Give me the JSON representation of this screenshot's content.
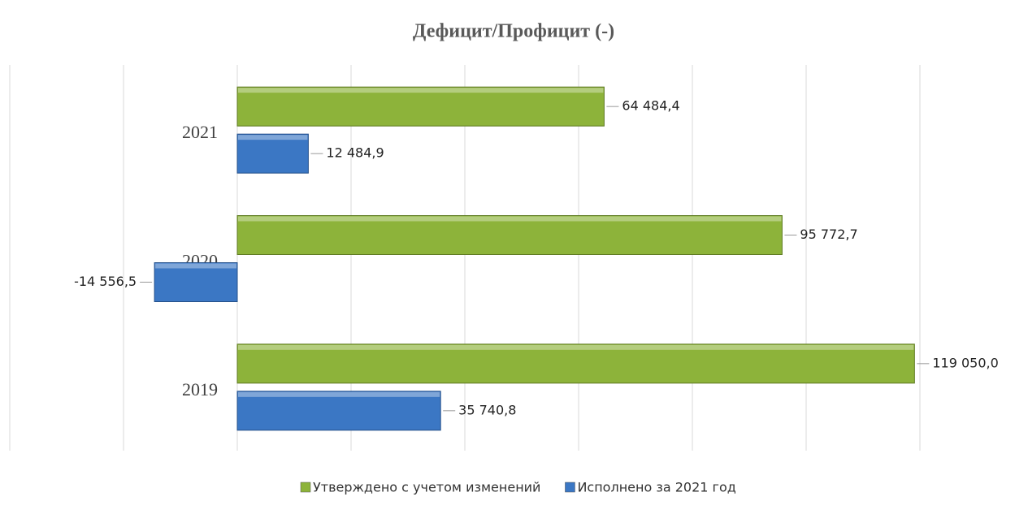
{
  "chart_data": {
    "type": "bar",
    "orientation": "horizontal",
    "title": "Дефицит/Профицит (-)",
    "categories": [
      "2019",
      "2020",
      "2021"
    ],
    "series": [
      {
        "name": "Утверждено с учетом изменений",
        "color": "#8db33a",
        "values": [
          119050.0,
          95772.7,
          64484.4
        ],
        "value_labels": [
          "119 050,0",
          "95 772,7",
          "64 484,4"
        ]
      },
      {
        "name": "Исполнено за 2021 год",
        "color": "#3b77c4",
        "values": [
          35740.8,
          -14556.5,
          12484.9
        ],
        "value_labels": [
          "35 740,8",
          "-14 556,5",
          "12 484,9"
        ]
      }
    ],
    "xlim": [
      -40000,
      120000
    ],
    "xticks": [
      -40000,
      -20000,
      0,
      20000,
      40000,
      60000,
      80000,
      100000,
      120000
    ],
    "grid": true
  }
}
